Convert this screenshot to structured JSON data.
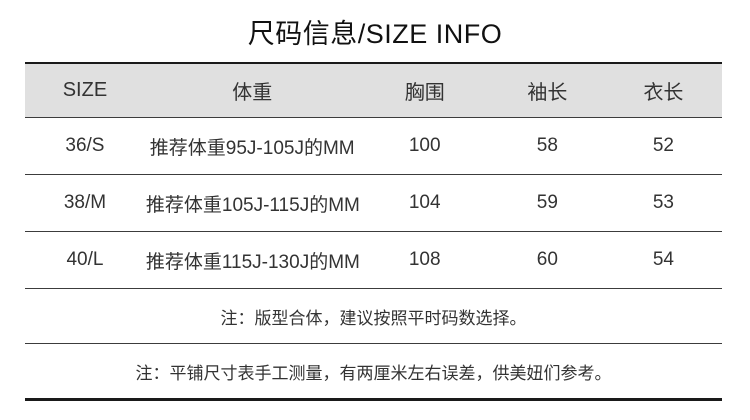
{
  "title": "尺码信息/SIZE INFO",
  "table": {
    "headers": [
      "SIZE",
      "体重",
      "胸围",
      "袖长",
      "衣长"
    ],
    "rows": [
      [
        "36/S",
        "推荐体重95J-105J的MM",
        "100",
        "58",
        "52"
      ],
      [
        "38/M",
        "推荐体重105J-115J的MM",
        "104",
        "59",
        "53"
      ],
      [
        "40/L",
        "推荐体重115J-130J的MM",
        "108",
        "60",
        "54"
      ]
    ],
    "notes": [
      "注：版型合体，建议按照平时码数选择。",
      "注：平铺尺寸表手工测量，有两厘米左右误差，供美妞们参考。"
    ]
  },
  "colors": {
    "header_bg": "#e0e0e0",
    "outer_border": "#1a1a1a",
    "inner_line": "#3c3c3c",
    "text": "#333333"
  }
}
